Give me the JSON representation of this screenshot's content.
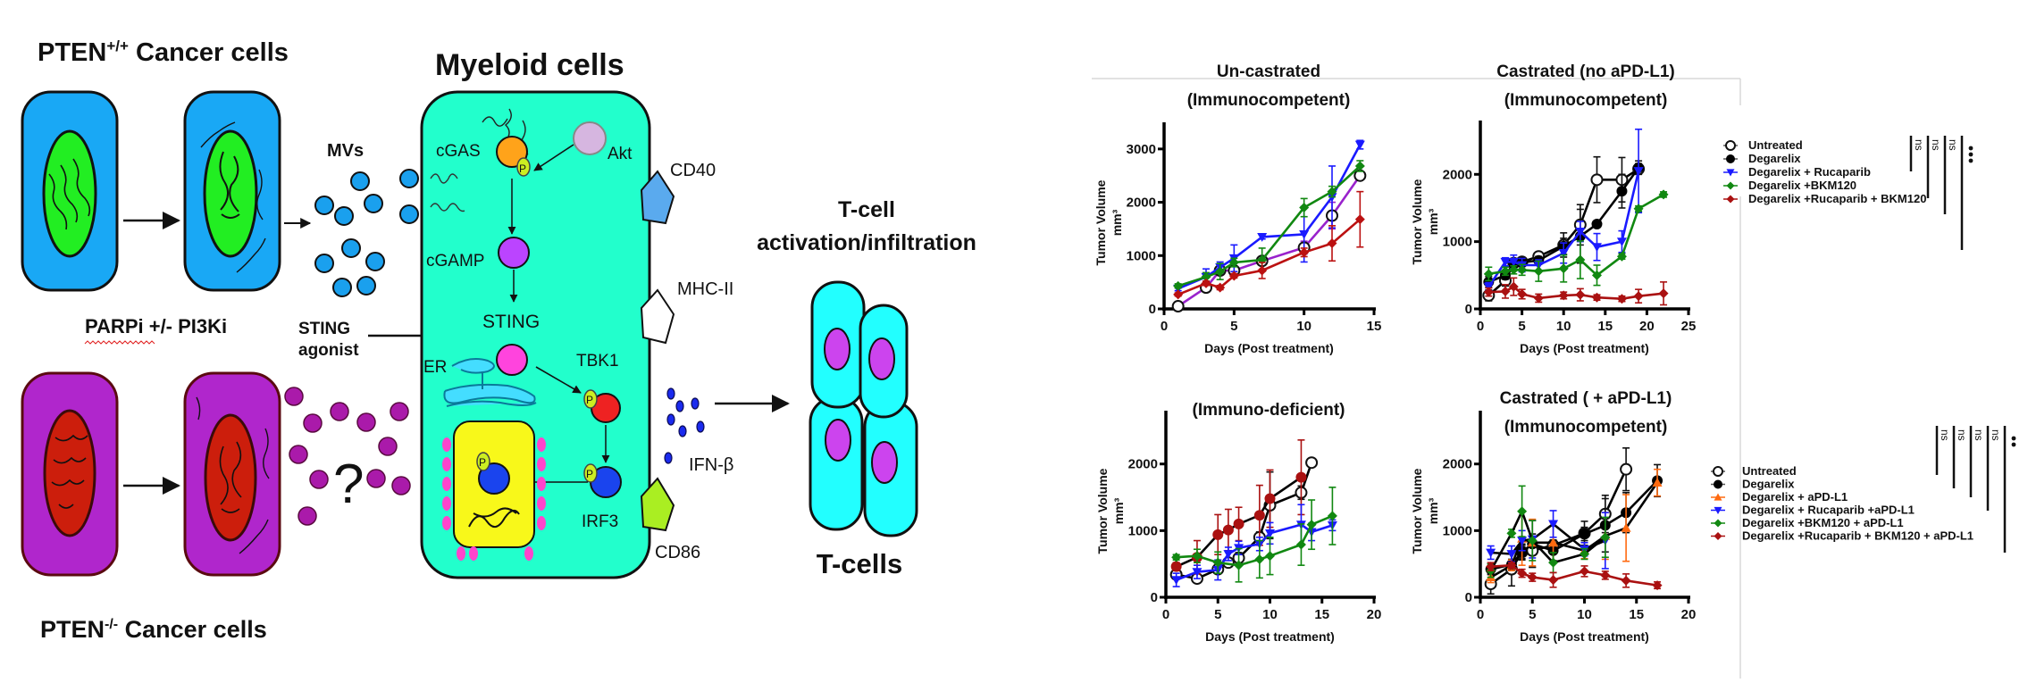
{
  "diagram": {
    "pten_pos_label": {
      "main": "PTEN",
      "sup": "+/+",
      "rest": " Cancer cells"
    },
    "pten_neg_label": {
      "main": "PTEN",
      "sup": "-/-",
      "rest": " Cancer cells"
    },
    "treatment_label": "PARPi +/- PI3Ki",
    "mvs_label": "MVs",
    "sting_agonist_line1": "STING",
    "sting_agonist_line2": "agonist",
    "question_mark": "?",
    "myeloid_title": "Myeloid cells",
    "nodes": {
      "cgas": "cGAS",
      "akt": "Akt",
      "cgamp": "cGAMP",
      "sting": "STING",
      "er": "ER",
      "tbk1": "TBK1",
      "irf3": "IRF3",
      "phospho": "P"
    },
    "surface_markers": {
      "cd40": "CD40",
      "mhc2": "MHC-II",
      "cd86": "CD86"
    },
    "ifn_label": "IFN-β",
    "tcell_title_line1": "T-cell",
    "tcell_title_line2": "activation/infiltration",
    "tcells_label": "T-cells",
    "colors": {
      "pten_pos_cytoplasm": "#19a8f5",
      "pten_pos_nucleus": "#22ee22",
      "pten_neg_cytoplasm": "#b026cc",
      "pten_neg_nucleus": "#cc1e0c",
      "myeloid": "#22ffcc",
      "tcell": "#22ffff",
      "tcell_nucleus": "#cc44ee",
      "nucleus_yellow": "#f8f81a"
    }
  },
  "legends": {
    "top": {
      "items": [
        {
          "label": "Untreated",
          "color": "#000000",
          "marker": "open-circle"
        },
        {
          "label": "Degarelix",
          "color": "#000000",
          "marker": "circle"
        },
        {
          "label": "Degarelix + Rucaparib",
          "color": "#1a1aff",
          "marker": "triangle-down"
        },
        {
          "label": "Degarelix  +BKM120",
          "color": "#118811",
          "marker": "diamond"
        },
        {
          "label": "Degarelix  +Rucaparib + BKM120",
          "color": "#aa1111",
          "marker": "diamond"
        }
      ],
      "significance": [
        "ns",
        "ns",
        "ns",
        "***"
      ]
    },
    "bottom": {
      "items": [
        {
          "label": "Untreated",
          "color": "#000000",
          "marker": "open-circle"
        },
        {
          "label": "Degarelix",
          "color": "#000000",
          "marker": "circle"
        },
        {
          "label": "Degarelix + aPD-L1",
          "color": "#ff6a10",
          "marker": "triangle-up"
        },
        {
          "label": "Degarelix + Rucaparib +aPD-L1",
          "color": "#1a1aff",
          "marker": "triangle-down"
        },
        {
          "label": "Degarelix  +BKM120   + aPD-L1",
          "color": "#118811",
          "marker": "diamond"
        },
        {
          "label": "Degarelix  +Rucaparib + BKM120 + aPD-L1",
          "color": "#aa1111",
          "marker": "diamond"
        }
      ],
      "significance": [
        "ns",
        "ns",
        "ns",
        "ns",
        "**"
      ]
    }
  },
  "chart_data": [
    {
      "type": "line",
      "title": "Un-castrated",
      "subtitle": "(Immunocompetent)",
      "xlabel": "Days (Post treatment)",
      "ylabel": "Tumor Volume",
      "ylabel_unit": "mm³",
      "xlim": [
        0,
        15
      ],
      "ylim": [
        0,
        3500
      ],
      "xticks": [
        0,
        5,
        10,
        15
      ],
      "yticks": [
        0,
        1000,
        2000,
        3000
      ],
      "legend": "top-right (shared)",
      "grid": false,
      "series": [
        {
          "name": "Untreated",
          "color": "#9922cc",
          "marker": "open-circle",
          "x": [
            1,
            3,
            4,
            5,
            7,
            10,
            12,
            14
          ],
          "y": [
            50,
            400,
            720,
            720,
            900,
            1150,
            1750,
            2500
          ],
          "err": [
            0,
            60,
            60,
            80,
            80,
            120,
            250,
            60
          ]
        },
        {
          "name": "Degarelix + Rucaparib",
          "color": "#1a1aff",
          "marker": "triangle-down",
          "x": [
            1,
            3,
            4,
            5,
            7,
            10,
            12,
            14
          ],
          "y": [
            380,
            600,
            780,
            950,
            1350,
            1400,
            2100,
            3080
          ],
          "err": [
            40,
            150,
            100,
            250,
            40,
            520,
            580,
            80
          ]
        },
        {
          "name": "Degarelix  +BKM120",
          "color": "#118811",
          "marker": "diamond",
          "x": [
            1,
            3,
            4,
            5,
            7,
            10,
            12,
            14
          ],
          "y": [
            430,
            600,
            700,
            870,
            920,
            1900,
            2200,
            2680
          ],
          "err": [
            40,
            80,
            150,
            80,
            220,
            170,
            100,
            100
          ]
        },
        {
          "name": "Degarelix  +Rucaparib + BKM120",
          "color": "#bb1111",
          "marker": "diamond",
          "x": [
            1,
            3,
            4,
            5,
            7,
            10,
            12,
            14
          ],
          "y": [
            270,
            480,
            400,
            620,
            720,
            1060,
            1230,
            1680
          ],
          "err": [
            30,
            40,
            40,
            40,
            150,
            80,
            330,
            520
          ]
        }
      ]
    },
    {
      "type": "line",
      "title": "Castrated (no aPD-L1)",
      "subtitle": "(Immunocompetent)",
      "xlabel": "Days (Post treatment)",
      "ylabel": "Tumor Volume",
      "ylabel_unit": "mm³",
      "xlim": [
        0,
        25
      ],
      "ylim": [
        0,
        2800
      ],
      "xticks": [
        0,
        5,
        10,
        15,
        20,
        25
      ],
      "yticks": [
        0,
        1000,
        2000
      ],
      "legend": "right",
      "grid": false,
      "series": [
        {
          "name": "Untreated",
          "color": "#000000",
          "marker": "open-circle",
          "x": [
            1,
            3,
            4,
            5,
            7,
            10,
            12,
            14,
            17,
            19
          ],
          "y": [
            200,
            420,
            680,
            700,
            780,
            950,
            1250,
            1920,
            1920,
            2080
          ],
          "err": [
            80,
            80,
            60,
            60,
            60,
            180,
            300,
            340,
            330,
            80
          ]
        },
        {
          "name": "Degarelix",
          "color": "#000000",
          "marker": "circle",
          "x": [
            1,
            3,
            4,
            5,
            7,
            10,
            12,
            14,
            17,
            19
          ],
          "y": [
            400,
            500,
            670,
            690,
            720,
            930,
            1080,
            1260,
            1750,
            2100
          ],
          "err": [
            80,
            60,
            60,
            60,
            60,
            120,
            400,
            40,
            250,
            100
          ]
        },
        {
          "name": "Degarelix + Rucaparib",
          "color": "#1a1aff",
          "marker": "triangle-down",
          "x": [
            1,
            3,
            4,
            5,
            7,
            10,
            12,
            14,
            17,
            19
          ],
          "y": [
            330,
            700,
            700,
            650,
            650,
            830,
            1150,
            920,
            1000,
            2050
          ],
          "err": [
            60,
            60,
            100,
            100,
            80,
            150,
            150,
            200,
            160,
            620
          ]
        },
        {
          "name": "Degarelix  +BKM120",
          "color": "#118811",
          "marker": "diamond",
          "x": [
            1,
            3,
            4,
            5,
            7,
            10,
            12,
            14,
            17,
            19,
            22
          ],
          "y": [
            520,
            560,
            580,
            580,
            560,
            600,
            730,
            500,
            780,
            1490,
            1700
          ],
          "err": [
            100,
            60,
            60,
            80,
            150,
            200,
            280,
            150,
            40,
            40,
            40
          ]
        },
        {
          "name": "Degarelix  +Rucaparib + BKM120",
          "color": "#aa1111",
          "marker": "diamond",
          "x": [
            1,
            3,
            4,
            5,
            7,
            10,
            12,
            14,
            17,
            19,
            22
          ],
          "y": [
            250,
            260,
            330,
            220,
            160,
            200,
            210,
            170,
            150,
            190,
            230
          ],
          "err": [
            60,
            100,
            130,
            70,
            60,
            50,
            90,
            40,
            40,
            100,
            170
          ]
        }
      ]
    },
    {
      "type": "line",
      "title": "(Immuno-deficient)",
      "subtitle": "",
      "xlabel": "Days (Post treatment)",
      "ylabel": "Tumor Volume",
      "ylabel_unit": "mm³",
      "xlim": [
        0,
        20
      ],
      "ylim": [
        0,
        2800
      ],
      "xticks": [
        0,
        5,
        10,
        15,
        20
      ],
      "yticks": [
        0,
        1000,
        2000
      ],
      "legend": "none",
      "grid": false,
      "series": [
        {
          "name": "Untreated",
          "color": "#000000",
          "marker": "open-circle",
          "x": [
            1,
            3,
            5,
            6,
            7,
            9,
            10,
            13,
            14
          ],
          "y": [
            340,
            280,
            420,
            520,
            590,
            900,
            1380,
            1570,
            2020
          ],
          "err": [
            40,
            40,
            40,
            40,
            80,
            80,
            500,
            100,
            40
          ]
        },
        {
          "name": "Degarelix  +Rucaparib + BKM120",
          "color": "#000000",
          "markerColor": "#aa1111",
          "marker": "circle",
          "x": [
            1,
            3,
            5,
            6,
            7,
            9,
            10,
            13
          ],
          "y": [
            460,
            600,
            940,
            1010,
            1100,
            1230,
            1480,
            1800
          ],
          "err": [
            60,
            250,
            300,
            310,
            250,
            450,
            430,
            560
          ]
        },
        {
          "name": "Degarelix + Rucaparib",
          "color": "#1a1aff",
          "marker": "triangle-down",
          "x": [
            1,
            3,
            5,
            6,
            7,
            9,
            10,
            13,
            14,
            16
          ],
          "y": [
            260,
            380,
            410,
            650,
            740,
            800,
            960,
            1090,
            980,
            1080
          ],
          "err": [
            100,
            100,
            150,
            100,
            100,
            100,
            160,
            300,
            130,
            80
          ]
        },
        {
          "name": "Degarelix  +BKM120",
          "color": "#118811",
          "marker": "diamond",
          "x": [
            1,
            3,
            5,
            7,
            9,
            10,
            13,
            14,
            16
          ],
          "y": [
            600,
            620,
            520,
            480,
            570,
            620,
            790,
            1090,
            1220
          ],
          "err": [
            40,
            100,
            160,
            250,
            280,
            280,
            310,
            370,
            430
          ]
        }
      ]
    },
    {
      "type": "line",
      "title": "Castrated ( +  aPD-L1)",
      "subtitle": "(Immunocompetent)",
      "xlabel": "Days (Post treatment)",
      "ylabel": "Tumor Volume",
      "ylabel_unit": "mm³",
      "xlim": [
        0,
        20
      ],
      "ylim": [
        0,
        2800
      ],
      "xticks": [
        0,
        5,
        10,
        15,
        20
      ],
      "yticks": [
        0,
        1000,
        2000
      ],
      "legend": "right",
      "grid": false,
      "series": [
        {
          "name": "Untreated",
          "color": "#000000",
          "marker": "open-circle",
          "x": [
            1,
            3,
            4,
            5,
            7,
            10,
            12,
            14
          ],
          "y": [
            200,
            420,
            680,
            700,
            780,
            960,
            1250,
            1920
          ],
          "err": [
            150,
            250,
            120,
            250,
            80,
            180,
            280,
            320
          ]
        },
        {
          "name": "Degarelix",
          "color": "#000000",
          "marker": "circle",
          "x": [
            1,
            3,
            4,
            5,
            7,
            10,
            12,
            14,
            17
          ],
          "y": [
            420,
            490,
            680,
            800,
            700,
            950,
            1080,
            1270,
            1750
          ],
          "err": [
            80,
            80,
            100,
            350,
            150,
            100,
            400,
            300,
            240
          ]
        },
        {
          "name": "Degarelix + aPD-L1",
          "color": "#000000",
          "markerColor": "#ff6a10",
          "marker": "triangle-up",
          "x": [
            1,
            3,
            4,
            5,
            7,
            10,
            12,
            14,
            17
          ],
          "y": [
            300,
            480,
            880,
            820,
            820,
            700,
            920,
            1040,
            1720
          ],
          "err": [
            80,
            80,
            400,
            350,
            300,
            120,
            350,
            500,
            200
          ]
        },
        {
          "name": "Degarelix + Rucaparib +aPD-L1",
          "color": "#000000",
          "markerColor": "#1a1aff",
          "marker": "triangle-down",
          "x": [
            1,
            3,
            4,
            5,
            7,
            10,
            12
          ],
          "y": [
            670,
            650,
            850,
            870,
            1100,
            720,
            850
          ],
          "err": [
            100,
            120,
            150,
            280,
            200,
            100,
            420
          ]
        },
        {
          "name": "Degarelix  +BKM120   + aPD-L1",
          "color": "#000000",
          "markerColor": "#118811",
          "marker": "diamond",
          "x": [
            1,
            3,
            4,
            5,
            7,
            10,
            12
          ],
          "y": [
            400,
            960,
            1290,
            850,
            520,
            650,
            900
          ],
          "err": [
            100,
            60,
            380,
            300,
            150,
            80,
            300
          ]
        },
        {
          "name": "Degarelix  +Rucaparib + BKM120 + aPD-L1",
          "color": "#aa1111",
          "marker": "diamond",
          "x": [
            1,
            3,
            4,
            5,
            7,
            10,
            12,
            14,
            17
          ],
          "y": [
            460,
            480,
            360,
            300,
            260,
            390,
            330,
            250,
            180
          ],
          "err": [
            60,
            40,
            60,
            60,
            110,
            80,
            60,
            100,
            50
          ]
        }
      ]
    }
  ]
}
